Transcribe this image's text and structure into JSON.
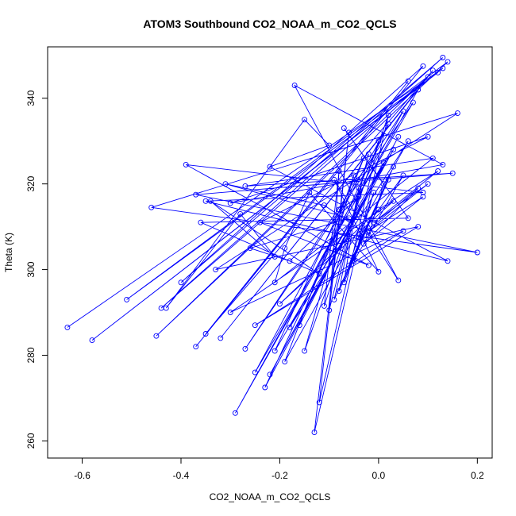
{
  "chart_data": {
    "type": "line",
    "title": "ATOM3 Southbound CO2_NOAA_m_CO2_QCLS",
    "xlabel": "CO2_NOAA_m_CO2_QCLS",
    "ylabel": "Theta (K)",
    "xlim": [
      -0.67,
      0.23
    ],
    "ylim": [
      256,
      352
    ],
    "x_ticks": [
      -0.6,
      -0.4,
      -0.2,
      0.0,
      0.2
    ],
    "x_tick_labels": [
      "-0.6",
      "-0.4",
      "-0.2",
      "0.0",
      "0.2"
    ],
    "y_ticks": [
      260,
      280,
      300,
      320,
      340
    ],
    "y_tick_labels": [
      "260",
      "280",
      "300",
      "320",
      "340"
    ],
    "color": "#0000ff",
    "series": [
      {
        "name": "CO2_NOAA_m_CO2_QCLS",
        "x": [
          -0.63,
          0.13,
          -0.58,
          0.12,
          -0.51,
          0.14,
          -0.45,
          0.1,
          -0.44,
          0.13,
          -0.4,
          0.09,
          -0.37,
          0.06,
          -0.35,
          0.11,
          -0.32,
          0.08,
          -0.29,
          0.05,
          -0.27,
          0.07,
          -0.25,
          0.02,
          -0.23,
          0.04,
          -0.22,
          0.03,
          -0.21,
          -0.03,
          -0.19,
          0.06,
          -0.18,
          0.01,
          -0.16,
          -0.05,
          -0.15,
          0.02,
          -0.13,
          -0.06,
          -0.12,
          0.0,
          -0.11,
          -0.08,
          -0.1,
          -0.02,
          -0.09,
          0.02,
          -0.08,
          -0.04,
          -0.07,
          0.03,
          -0.06,
          -0.01,
          -0.05,
          0.05,
          -0.04,
          0.08,
          -0.03,
          0.09,
          -0.02,
          0.1,
          -0.01,
          0.12,
          0.0,
          -0.2,
          0.03,
          -0.3,
          0.05,
          -0.25,
          0.08,
          -0.33,
          0.16,
          -0.46,
          0.2,
          -0.37,
          0.15,
          -0.27,
          0.11,
          -0.21,
          -0.19,
          -0.14,
          0.0,
          -0.09,
          0.04,
          -0.17,
          0.13,
          -0.3,
          0.1,
          -0.24,
          -0.02,
          -0.39,
          0.09,
          -0.35,
          0.14,
          -0.22,
          -0.1,
          -0.15,
          -0.43,
          -0.28,
          -0.21,
          -0.34,
          -0.12,
          -0.36,
          0.06,
          -0.07,
          0.01,
          -0.02,
          -0.11,
          -0.31,
          -0.06,
          -0.26,
          -0.18,
          -0.04,
          -0.08
        ],
        "y": [
          286.5,
          347,
          283.5,
          346,
          293,
          348.5,
          284.5,
          345,
          291,
          349.5,
          297,
          347.5,
          282,
          344,
          285,
          346.5,
          284,
          342,
          266.5,
          337,
          281.5,
          339,
          276,
          334,
          272.5,
          331,
          275.5,
          328,
          281,
          326,
          278.5,
          330,
          286.5,
          325,
          287,
          322,
          281,
          336,
          262,
          332,
          269,
          330,
          291.5,
          323,
          290.5,
          327,
          293,
          321,
          295,
          319,
          297,
          324,
          301,
          318,
          302,
          322,
          307.5,
          319,
          306,
          317,
          309,
          320,
          311,
          323,
          314,
          292,
          316,
          290,
          309,
          287,
          310,
          300,
          336.5,
          314.5,
          304,
          317.5,
          322.5,
          319.5,
          326,
          297,
          305,
          318,
          299.5,
          321,
          297.5,
          343,
          324.5,
          315.5,
          331,
          311,
          301,
          324.5,
          318,
          316,
          302,
          324,
          329,
          335,
          291,
          313,
          303,
          316,
          299,
          311,
          312,
          333,
          320,
          308,
          315,
          320,
          312,
          305,
          302,
          317,
          314
        ]
      }
    ]
  }
}
